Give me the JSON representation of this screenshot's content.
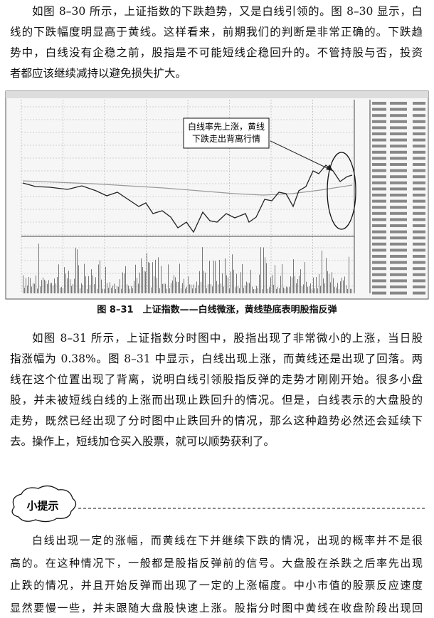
{
  "paragraph_1": [
    "如图 8–30 所示，上证指数的下跌趋势，又是白线引领的。图 8–30 显示，白",
    "线的下跌幅度明显高于黄线。这样看来，前期我们的判断是非常正确的。下跌趋",
    "势中，白线没有企稳之前，股指是不可能短线企稳回升的。不管持股与否，投资",
    "者都应该继续减持以避免损失扩大。"
  ],
  "figure": {
    "annotation": [
      "白线率先上涨，黄线",
      "下跌走出背离行情"
    ],
    "caption": "图 8–31　上证指数——白线微涨，黄线垫底表明股指反弹"
  },
  "paragraph_2": [
    "如图 8–31 所示，上证指数分时图中，股指出现了非常微小的上涨，当日股",
    "指涨幅为 0.38%。图 8–31 中显示，白线出现上涨，而黄线还是出现了回落。两",
    "线在这个位置出现了背离，说明白线引领股指反弹的走势才刚刚开始。很多小盘",
    "股，并未被短线白线的上涨而出现止跌回升的情况。但是，白线表示的大盘股的",
    "走势，既然已经出现了分时图中止跌回升的情况，那么这种趋势必然还会延续下",
    "去。操作上，短线加仓买入股票，就可以顺势获利了。"
  ],
  "tip": {
    "label": "小提示",
    "lines": [
      "白线出现一定的涨幅，而黄线在下并继续下跌的情况，出现的概率并不是很",
      "高的。在这种情况下，一般都是股指反弹前的信号。大盘股在杀跌之后率先出现",
      "止跌的情况，并且开始反弹而出现了一定的上涨幅度。中小市值的股票反应速度",
      "显然要慢一些，并未跟随大盘股快速上涨。股指分时图中黄线在收盘阶段出现回"
    ]
  }
}
